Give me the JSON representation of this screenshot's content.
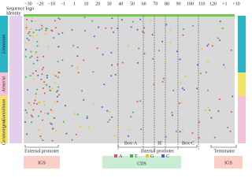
{
  "header": {
    "logo_label": "Sequence logo",
    "identity_label": "Identity"
  },
  "ruler": {
    "labels": [
      "−30",
      "−20",
      "−10",
      "−1",
      "1",
      "10",
      "20",
      "30",
      "40",
      "50",
      "60",
      "70",
      "80",
      "90",
      "100",
      "110",
      "120",
      "+1",
      "+10"
    ]
  },
  "groups": [
    "Limonium",
    "Armeria",
    "Goniolimon",
    "Ceratostigma"
  ],
  "regions": {
    "external": "External promoter",
    "internal": "Internal promoter",
    "box_a": "Box-A",
    "ie": "IE",
    "box_c": "Box-C",
    "terminator": "Terminator"
  },
  "segments": {
    "igs_left": "IGS",
    "cds": "CDS",
    "igs_right": "IGS"
  },
  "legend": [
    "A",
    "T",
    "G",
    "C"
  ]
}
